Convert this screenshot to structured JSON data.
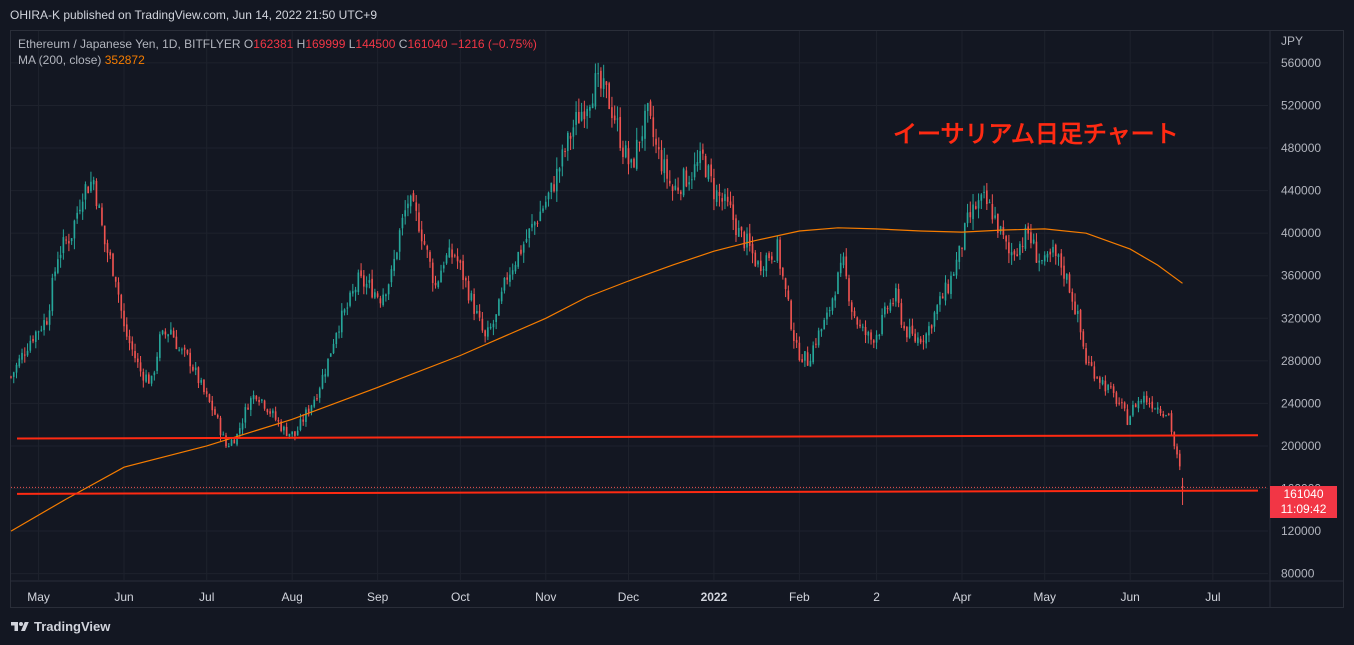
{
  "header": {
    "published": "OHIRA-K published on TradingView.com, Jun 14, 2022 21:50 UTC+9"
  },
  "legend": {
    "symbol": "Ethereum / Japanese Yen, 1D, BITFLYER",
    "o_label": "O",
    "o_value": "162381",
    "h_label": "H",
    "h_value": "169999",
    "l_label": "L",
    "l_value": "144500",
    "c_label": "C",
    "c_value": "161040",
    "change": "−1216 (−0.75%)",
    "ma_label": "MA (200, close)",
    "ma_value": "352872"
  },
  "annotation": "イーサリアム日足チャート",
  "price_tag": {
    "price": "161040",
    "countdown": "11:09:42"
  },
  "footer": {
    "brand": "TradingView"
  },
  "colors": {
    "bg": "#131722",
    "up": "#26a69a",
    "down": "#ef5350",
    "ma": "#f57c00",
    "hline": "#ff2a12",
    "grid": "#1e222d"
  },
  "chart_data": {
    "type": "candlestick",
    "currency": "JPY",
    "y_ticks": [
      80000,
      120000,
      160000,
      200000,
      240000,
      280000,
      320000,
      360000,
      400000,
      440000,
      480000,
      520000,
      560000
    ],
    "ylim": [
      74000,
      590000
    ],
    "x_ticks": [
      "May",
      "Jun",
      "Jul",
      "Aug",
      "Sep",
      "Oct",
      "Nov",
      "Dec",
      "2022",
      "Feb",
      "2",
      "Apr",
      "May",
      "Jun",
      "Jul"
    ],
    "x_tick_days": [
      0,
      31,
      61,
      92,
      123,
      153,
      184,
      214,
      245,
      276,
      304,
      335,
      365,
      396,
      426
    ],
    "start_day": -10,
    "end_day": 446,
    "close_path": [
      [
        -10,
        265000
      ],
      [
        -3,
        300000
      ],
      [
        3,
        320000
      ],
      [
        7,
        380000
      ],
      [
        12,
        400000
      ],
      [
        16,
        440000
      ],
      [
        20,
        450000
      ],
      [
        24,
        390000
      ],
      [
        28,
        360000
      ],
      [
        31,
        310000
      ],
      [
        34,
        290000
      ],
      [
        37,
        270000
      ],
      [
        41,
        260000
      ],
      [
        44,
        300000
      ],
      [
        48,
        310000
      ],
      [
        51,
        290000
      ],
      [
        55,
        280000
      ],
      [
        60,
        250000
      ],
      [
        64,
        230000
      ],
      [
        68,
        200000
      ],
      [
        72,
        210000
      ],
      [
        76,
        240000
      ],
      [
        79,
        250000
      ],
      [
        82,
        240000
      ],
      [
        86,
        225000
      ],
      [
        89,
        215000
      ],
      [
        93,
        210000
      ],
      [
        97,
        230000
      ],
      [
        101,
        250000
      ],
      [
        105,
        280000
      ],
      [
        108,
        310000
      ],
      [
        112,
        330000
      ],
      [
        116,
        355000
      ],
      [
        120,
        350000
      ],
      [
        124,
        340000
      ],
      [
        128,
        360000
      ],
      [
        131,
        400000
      ],
      [
        134,
        430000
      ],
      [
        138,
        410000
      ],
      [
        141,
        380000
      ],
      [
        144,
        350000
      ],
      [
        147,
        375000
      ],
      [
        151,
        380000
      ],
      [
        154,
        360000
      ],
      [
        158,
        330000
      ],
      [
        162,
        300000
      ],
      [
        166,
        320000
      ],
      [
        170,
        360000
      ],
      [
        174,
        380000
      ],
      [
        178,
        400000
      ],
      [
        182,
        420000
      ],
      [
        186,
        440000
      ],
      [
        190,
        470000
      ],
      [
        194,
        500000
      ],
      [
        198,
        520000
      ],
      [
        202,
        540000
      ],
      [
        206,
        530000
      ],
      [
        209,
        510000
      ],
      [
        212,
        480000
      ],
      [
        215,
        460000
      ],
      [
        218,
        490000
      ],
      [
        221,
        510000
      ],
      [
        224,
        480000
      ],
      [
        227,
        460000
      ],
      [
        230,
        440000
      ],
      [
        234,
        450000
      ],
      [
        238,
        460000
      ],
      [
        241,
        470000
      ],
      [
        245,
        440000
      ],
      [
        248,
        430000
      ],
      [
        251,
        420000
      ],
      [
        254,
        400000
      ],
      [
        257,
        390000
      ],
      [
        261,
        370000
      ],
      [
        265,
        380000
      ],
      [
        268,
        385000
      ],
      [
        272,
        330000
      ],
      [
        275,
        290000
      ],
      [
        279,
        280000
      ],
      [
        282,
        300000
      ],
      [
        286,
        320000
      ],
      [
        289,
        350000
      ],
      [
        292,
        370000
      ],
      [
        295,
        330000
      ],
      [
        298,
        310000
      ],
      [
        302,
        300000
      ],
      [
        305,
        310000
      ],
      [
        308,
        330000
      ],
      [
        311,
        340000
      ],
      [
        314,
        310000
      ],
      [
        318,
        300000
      ],
      [
        322,
        305000
      ],
      [
        326,
        330000
      ],
      [
        330,
        350000
      ],
      [
        334,
        380000
      ],
      [
        337,
        410000
      ],
      [
        340,
        425000
      ],
      [
        343,
        430000
      ],
      [
        346,
        420000
      ],
      [
        349,
        400000
      ],
      [
        352,
        380000
      ],
      [
        356,
        390000
      ],
      [
        359,
        400000
      ],
      [
        362,
        380000
      ],
      [
        365,
        370000
      ],
      [
        368,
        380000
      ],
      [
        371,
        370000
      ],
      [
        374,
        350000
      ],
      [
        377,
        320000
      ],
      [
        380,
        280000
      ],
      [
        383,
        270000
      ],
      [
        386,
        260000
      ],
      [
        389,
        250000
      ],
      [
        392,
        240000
      ],
      [
        395,
        225000
      ],
      [
        398,
        240000
      ],
      [
        401,
        245000
      ],
      [
        404,
        240000
      ],
      [
        407,
        235000
      ],
      [
        410,
        230000
      ],
      [
        412,
        200000
      ],
      [
        414,
        178000
      ],
      [
        415,
        161040
      ]
    ],
    "ma200_path": [
      [
        -10,
        120000
      ],
      [
        10,
        150000
      ],
      [
        31,
        180000
      ],
      [
        61,
        200000
      ],
      [
        92,
        225000
      ],
      [
        123,
        255000
      ],
      [
        153,
        285000
      ],
      [
        184,
        320000
      ],
      [
        199,
        340000
      ],
      [
        214,
        355000
      ],
      [
        230,
        370000
      ],
      [
        245,
        383000
      ],
      [
        260,
        393000
      ],
      [
        276,
        402000
      ],
      [
        290,
        405000
      ],
      [
        304,
        404000
      ],
      [
        320,
        402000
      ],
      [
        335,
        401000
      ],
      [
        350,
        403000
      ],
      [
        365,
        404000
      ],
      [
        380,
        400000
      ],
      [
        396,
        385000
      ],
      [
        406,
        370000
      ],
      [
        415,
        352872
      ]
    ],
    "horizontal_lines": [
      {
        "y_start": 207000,
        "y_end": 210000,
        "color": "#ff2a12"
      },
      {
        "y_start": 155000,
        "y_end": 158000,
        "color": "#ff2a12"
      }
    ],
    "last_price": 161040
  }
}
